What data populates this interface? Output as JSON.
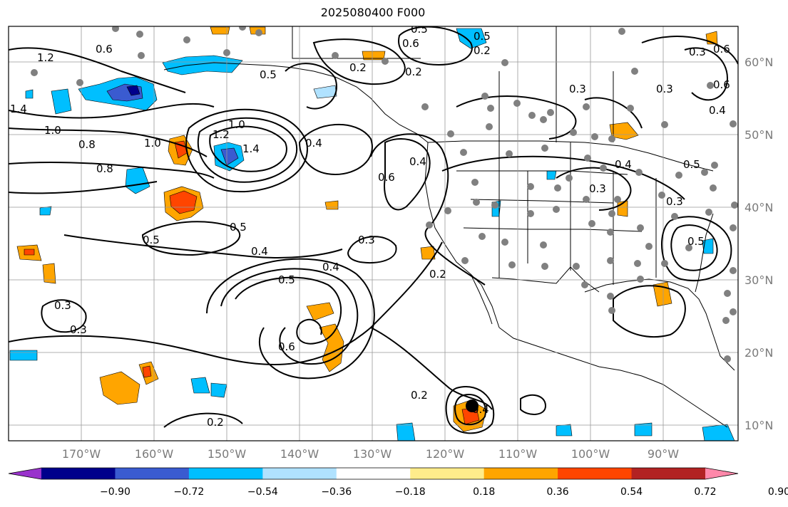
{
  "title": "2025080400 F000",
  "lon_ticks": [
    "170°W",
    "160°W",
    "150°W",
    "140°W",
    "130°W",
    "120°W",
    "110°W",
    "100°W",
    "90°W"
  ],
  "lat_ticks": [
    "60°N",
    "50°N",
    "40°N",
    "30°N",
    "20°N",
    "10°N"
  ],
  "colorbar": {
    "colors": [
      "#9932cc",
      "#00008b",
      "#3a5bd0",
      "#00bfff",
      "#b0e2ff",
      "#ffffff",
      "#ffec8b",
      "#ffa500",
      "#ff4500",
      "#b22222",
      "#ff88aa"
    ],
    "labels": [
      "−0.90",
      "−0.72",
      "−0.54",
      "−0.36",
      "−0.18",
      "0.18",
      "0.36",
      "0.54",
      "0.72",
      "0.90"
    ]
  },
  "contour_labels": [
    "1.2",
    "1.4",
    "1.0",
    "0.8",
    "0.8",
    "1.0",
    "1.0",
    "1.4",
    "1.2",
    "0.6",
    "0.5",
    "0.5",
    "0.4",
    "0.3",
    "0.3",
    "0.5",
    "0.4",
    "0.5",
    "0.6",
    "0.3",
    "0.2",
    "0.2",
    "0.2",
    "0.5",
    "0.6",
    "0.4",
    "0.4",
    "0.6",
    "0.2",
    "0.2",
    "0.5",
    "0.3",
    "0.3",
    "0.4",
    "0.3",
    "0.3",
    "0.6",
    "0.4",
    "0.3",
    "0.5",
    "0.6",
    "0.5",
    "0.2",
    "0.4"
  ]
}
